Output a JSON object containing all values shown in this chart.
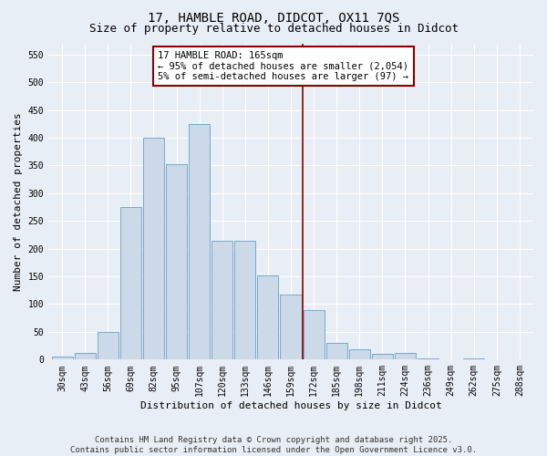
{
  "title": "17, HAMBLE ROAD, DIDCOT, OX11 7QS",
  "subtitle": "Size of property relative to detached houses in Didcot",
  "xlabel": "Distribution of detached houses by size in Didcot",
  "ylabel": "Number of detached properties",
  "categories": [
    "30sqm",
    "43sqm",
    "56sqm",
    "69sqm",
    "82sqm",
    "95sqm",
    "107sqm",
    "120sqm",
    "133sqm",
    "146sqm",
    "159sqm",
    "172sqm",
    "185sqm",
    "198sqm",
    "211sqm",
    "224sqm",
    "236sqm",
    "249sqm",
    "262sqm",
    "275sqm",
    "288sqm"
  ],
  "values": [
    5,
    12,
    50,
    275,
    400,
    352,
    425,
    215,
    215,
    152,
    118,
    90,
    30,
    18,
    10,
    12,
    3,
    0,
    2,
    0,
    0
  ],
  "bar_color": "#ccd9e8",
  "bar_edge_color": "#6a9fc0",
  "marker_line_color": "#8b0000",
  "annotation_text": "17 HAMBLE ROAD: 165sqm\n← 95% of detached houses are smaller (2,054)\n5% of semi-detached houses are larger (97) →",
  "annotation_box_color": "#ffffff",
  "annotation_box_edge_color": "#8b0000",
  "ylim": [
    0,
    570
  ],
  "yticks": [
    0,
    50,
    100,
    150,
    200,
    250,
    300,
    350,
    400,
    450,
    500,
    550
  ],
  "footer": "Contains HM Land Registry data © Crown copyright and database right 2025.\nContains public sector information licensed under the Open Government Licence v3.0.",
  "bg_color": "#e8eef5",
  "plot_bg_color": "#e8eef5",
  "grid_color": "#ffffff",
  "title_fontsize": 10,
  "subtitle_fontsize": 9,
  "axis_label_fontsize": 8,
  "tick_fontsize": 7,
  "footer_fontsize": 6.5
}
